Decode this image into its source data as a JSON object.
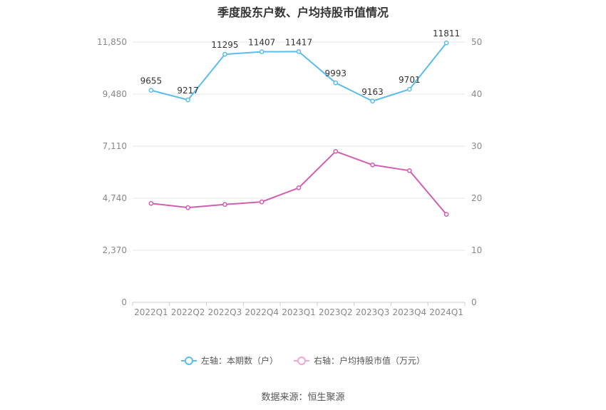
{
  "chart_data": {
    "type": "line",
    "title": "季度股东户数、户均持股市值情况",
    "categories": [
      "2022Q1",
      "2022Q2",
      "2022Q3",
      "2022Q4",
      "2023Q1",
      "2023Q2",
      "2023Q3",
      "2023Q4",
      "2024Q1"
    ],
    "left_axis": {
      "ticks": [
        "0",
        "2,370",
        "4,740",
        "7,110",
        "9,480",
        "11,850"
      ],
      "ylim": [
        0,
        11850
      ]
    },
    "right_axis": {
      "ticks": [
        "0",
        "10",
        "20",
        "30",
        "40",
        "50"
      ],
      "ylim": [
        0,
        50
      ]
    },
    "series": [
      {
        "name": "左轴：本期数（户）",
        "axis": "left",
        "color": "#5bbcf0",
        "values": [
          9655,
          9217,
          11295,
          11407,
          11417,
          9993,
          9163,
          9701,
          11811
        ],
        "labels": [
          "9655",
          "9217",
          "11295",
          "11407",
          "11417",
          "9993",
          "9163",
          "9701",
          "11811"
        ]
      },
      {
        "name": "右轴：户均持股市值（万元）",
        "axis": "right",
        "color": "#d05fb0",
        "values": [
          19.0,
          18.2,
          18.8,
          19.3,
          22.0,
          29.0,
          26.4,
          25.3,
          16.9
        ]
      }
    ],
    "grid": true,
    "legend_position": "bottom"
  },
  "footer": {
    "source": "数据来源：恒生聚源"
  }
}
